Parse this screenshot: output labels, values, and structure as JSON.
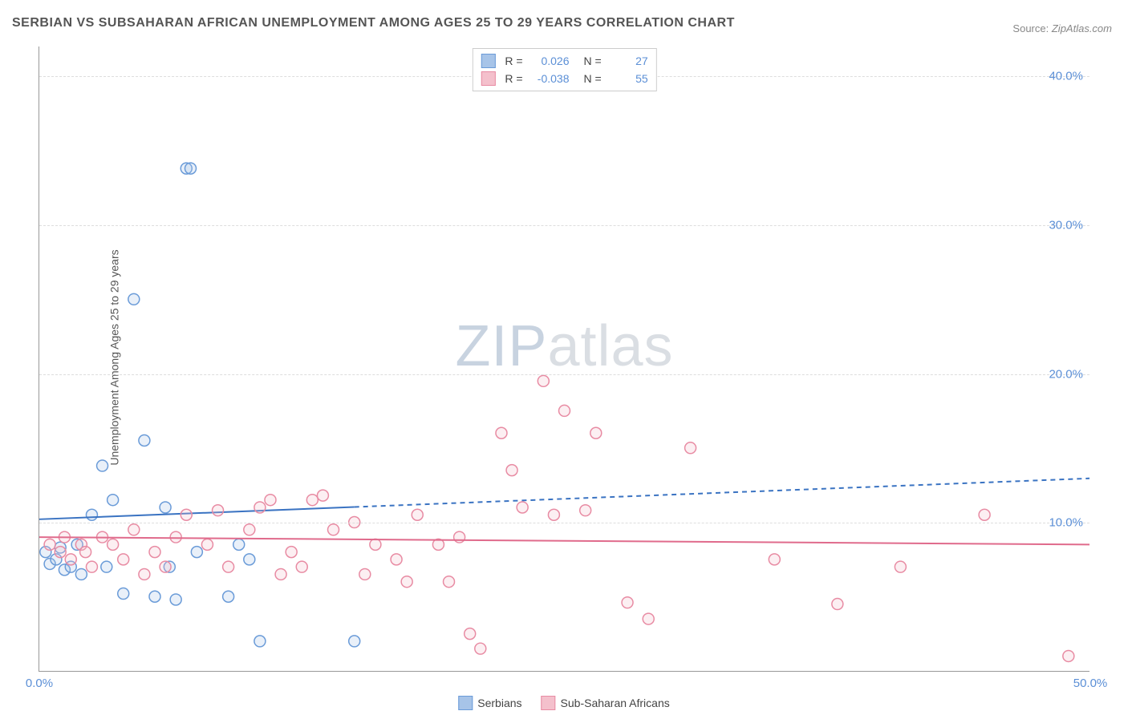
{
  "title": "SERBIAN VS SUBSAHARAN AFRICAN UNEMPLOYMENT AMONG AGES 25 TO 29 YEARS CORRELATION CHART",
  "source_label": "Source:",
  "source_value": "ZipAtlas.com",
  "ylabel": "Unemployment Among Ages 25 to 29 years",
  "watermark_zip": "ZIP",
  "watermark_atlas": "atlas",
  "chart": {
    "type": "scatter",
    "xlim": [
      0,
      50
    ],
    "ylim": [
      0,
      42
    ],
    "xticks": [
      {
        "v": 0,
        "l": "0.0%"
      },
      {
        "v": 50,
        "l": "50.0%"
      }
    ],
    "yticks": [
      {
        "v": 10,
        "l": "10.0%"
      },
      {
        "v": 20,
        "l": "20.0%"
      },
      {
        "v": 30,
        "l": "30.0%"
      },
      {
        "v": 40,
        "l": "40.0%"
      }
    ],
    "grid_color": "#dddddd",
    "background_color": "#ffffff",
    "axis_color": "#999999",
    "tick_color": "#5b8fd6",
    "marker_radius": 7,
    "marker_stroke_width": 1.5,
    "marker_fill_opacity": 0.25,
    "series": [
      {
        "key": "serbians",
        "label": "Serbians",
        "fill": "#a7c4e8",
        "stroke": "#6a9bd8",
        "R": "0.026",
        "N": "27",
        "trend": {
          "slope": 0.055,
          "intercept": 10.2,
          "solid_until_x": 15,
          "line_color": "#3a73c2",
          "line_width": 2
        },
        "points": [
          [
            0.3,
            8.0
          ],
          [
            0.5,
            7.2
          ],
          [
            0.8,
            7.5
          ],
          [
            1.0,
            8.3
          ],
          [
            1.2,
            6.8
          ],
          [
            1.5,
            7.0
          ],
          [
            1.8,
            8.5
          ],
          [
            2.0,
            6.5
          ],
          [
            2.5,
            10.5
          ],
          [
            3.0,
            13.8
          ],
          [
            3.2,
            7.0
          ],
          [
            3.5,
            11.5
          ],
          [
            4.0,
            5.2
          ],
          [
            4.5,
            25.0
          ],
          [
            5.0,
            15.5
          ],
          [
            5.5,
            5.0
          ],
          [
            6.0,
            11.0
          ],
          [
            6.2,
            7.0
          ],
          [
            6.5,
            4.8
          ],
          [
            7.0,
            33.8
          ],
          [
            7.2,
            33.8
          ],
          [
            7.5,
            8.0
          ],
          [
            9.0,
            5.0
          ],
          [
            9.5,
            8.5
          ],
          [
            10.5,
            2.0
          ],
          [
            15.0,
            2.0
          ],
          [
            10.0,
            7.5
          ]
        ]
      },
      {
        "key": "subsaharan",
        "label": "Sub-Saharan Africans",
        "fill": "#f4c0cc",
        "stroke": "#e88ba3",
        "R": "-0.038",
        "N": "55",
        "trend": {
          "slope": -0.01,
          "intercept": 9.0,
          "solid_until_x": 50,
          "line_color": "#e06b8c",
          "line_width": 2
        },
        "points": [
          [
            0.5,
            8.5
          ],
          [
            1.0,
            8.0
          ],
          [
            1.2,
            9.0
          ],
          [
            1.5,
            7.5
          ],
          [
            2.0,
            8.5
          ],
          [
            2.2,
            8.0
          ],
          [
            2.5,
            7.0
          ],
          [
            3.0,
            9.0
          ],
          [
            3.5,
            8.5
          ],
          [
            4.0,
            7.5
          ],
          [
            4.5,
            9.5
          ],
          [
            5.0,
            6.5
          ],
          [
            5.5,
            8.0
          ],
          [
            6.0,
            7.0
          ],
          [
            6.5,
            9.0
          ],
          [
            7.0,
            10.5
          ],
          [
            8.0,
            8.5
          ],
          [
            8.5,
            10.8
          ],
          [
            9.0,
            7.0
          ],
          [
            10.0,
            9.5
          ],
          [
            11.0,
            11.5
          ],
          [
            12.0,
            8.0
          ],
          [
            12.5,
            7.0
          ],
          [
            13.0,
            11.5
          ],
          [
            13.5,
            11.8
          ],
          [
            14.0,
            9.5
          ],
          [
            15.0,
            10.0
          ],
          [
            15.5,
            6.5
          ],
          [
            16.0,
            8.5
          ],
          [
            17.0,
            7.5
          ],
          [
            17.5,
            6.0
          ],
          [
            18.0,
            10.5
          ],
          [
            19.0,
            8.5
          ],
          [
            19.5,
            6.0
          ],
          [
            20.0,
            9.0
          ],
          [
            20.5,
            2.5
          ],
          [
            21.0,
            1.5
          ],
          [
            22.0,
            16.0
          ],
          [
            22.5,
            13.5
          ],
          [
            23.0,
            11.0
          ],
          [
            24.0,
            19.5
          ],
          [
            24.5,
            10.5
          ],
          [
            25.0,
            17.5
          ],
          [
            26.0,
            10.8
          ],
          [
            26.5,
            16.0
          ],
          [
            28.0,
            4.6
          ],
          [
            29.0,
            3.5
          ],
          [
            31.0,
            15.0
          ],
          [
            35.0,
            7.5
          ],
          [
            38.0,
            4.5
          ],
          [
            41.0,
            7.0
          ],
          [
            45.0,
            10.5
          ],
          [
            49.0,
            1.0
          ],
          [
            10.5,
            11.0
          ],
          [
            11.5,
            6.5
          ]
        ]
      }
    ]
  },
  "legend_top": {
    "r_label": "R =",
    "n_label": "N ="
  },
  "legend_bottom_series": [
    "serbians",
    "subsaharan"
  ]
}
